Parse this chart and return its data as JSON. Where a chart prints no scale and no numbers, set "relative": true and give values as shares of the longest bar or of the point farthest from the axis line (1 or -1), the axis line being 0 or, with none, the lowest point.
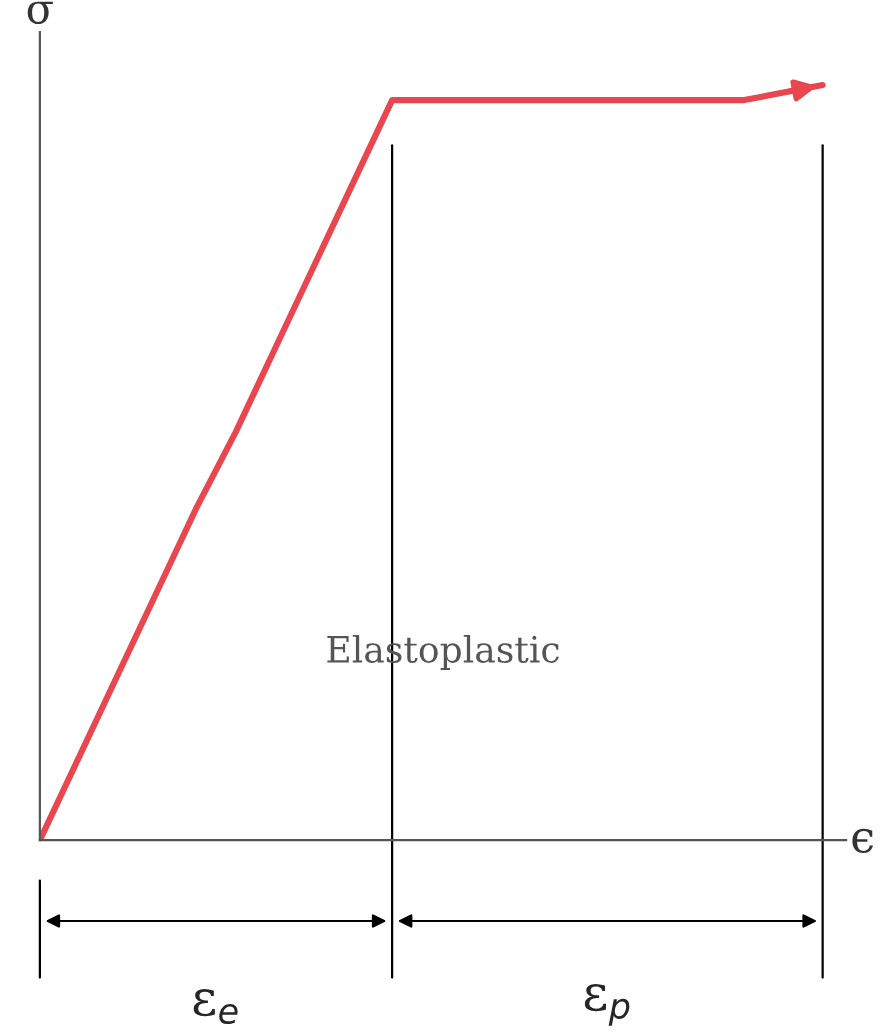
{
  "chart_data": {
    "type": "line",
    "relative": true,
    "xlabel": "ϵ",
    "ylabel": "σ",
    "categories": [
      null,
      null,
      null,
      null,
      null,
      null,
      null,
      null,
      null,
      null,
      null,
      null,
      null,
      null,
      null,
      null,
      null,
      null,
      null,
      null,
      null
    ],
    "series": [
      {
        "color": "#e8474f",
        "values": [
          0,
          0.11,
          0.22,
          0.33,
          0.44,
          0.54,
          0.65,
          0.76,
          0.87,
          0.98,
          0.98,
          0.98,
          0.98,
          0.98,
          0.98,
          0.98,
          0.98,
          0.98,
          0.98,
          0.99,
          1
        ]
      }
    ],
    "annotations": [
      "Elastoplastic",
      "ε$_{e}$",
      "ε$_{p}$"
    ],
    "grid": false,
    "legend": false,
    "marker": "none",
    "line_style": "solid"
  }
}
